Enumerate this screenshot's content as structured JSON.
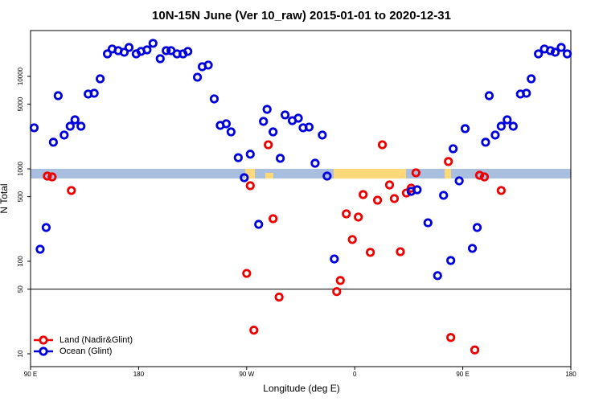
{
  "chart_data": {
    "type": "scatter",
    "title": "10N-15N June (Ver 10_raw)   2015-01-01 to 2020-12-31",
    "xlabel": "Longitude (deg E)",
    "ylabel": "N Total",
    "log_y": true,
    "legend": "lower left",
    "reference_line": 50,
    "xlim": [
      90,
      540
    ],
    "ylim": [
      7.26,
      31300
    ],
    "xticks": [
      {
        "value": 90,
        "label": "90 E"
      },
      180,
      {
        "value": 270,
        "label": "90 W"
      },
      {
        "value": 360,
        "label": "0"
      },
      {
        "value": 450,
        "label": "90 E"
      },
      {
        "value": 540,
        "label": "180"
      }
    ],
    "yticks": [
      10,
      50,
      100,
      500,
      1000,
      5000,
      10000
    ],
    "series": [
      {
        "name": "Land (Nadir&Glint)",
        "color": "#ee0000",
        "x": [
          104,
          108,
          124,
          270,
          273,
          276,
          288,
          292,
          297,
          345,
          348,
          353,
          358,
          363,
          367,
          373,
          379,
          383,
          389,
          393,
          398,
          403,
          407,
          411,
          438,
          440,
          460,
          464,
          468,
          482
        ],
        "values": [
          835,
          818,
          583,
          74,
          657,
          18,
          1820,
          289,
          41,
          47,
          62,
          326,
          172,
          301,
          527,
          125,
          458,
          1820,
          670,
          477,
          127,
          548,
          618,
          906,
          1200,
          15,
          11,
          852,
          818,
          583
        ]
      },
      {
        "name": "Ocean (Glint)",
        "color": "#0000dd",
        "x": [
          93,
          98,
          103,
          109,
          113,
          118,
          123,
          127,
          132,
          138,
          143,
          148,
          154,
          158,
          163,
          168,
          172,
          178,
          182,
          187,
          192,
          198,
          203,
          207,
          212,
          217,
          221,
          229,
          233,
          238,
          243,
          248,
          253,
          257,
          263,
          268,
          273,
          280,
          284,
          287,
          292,
          298,
          302,
          308,
          313,
          317,
          322,
          327,
          333,
          337,
          343,
          407,
          412,
          421,
          429,
          434,
          440,
          442,
          447,
          452,
          458,
          462,
          469,
          472,
          477,
          482,
          487,
          492,
          498,
          503,
          507,
          513,
          518,
          523,
          527,
          532,
          537
        ],
        "values": [
          2780,
          135,
          232,
          1940,
          6180,
          2320,
          2890,
          3390,
          2890,
          6440,
          6570,
          9410,
          17510,
          19770,
          18980,
          18240,
          20560,
          17510,
          18620,
          19360,
          22750,
          15530,
          18980,
          18980,
          17510,
          17510,
          18620,
          9790,
          12720,
          13240,
          5710,
          2950,
          3070,
          2510,
          1320,
          802,
          1440,
          251,
          3260,
          4400,
          2510,
          1300,
          3830,
          3320,
          3530,
          2780,
          2830,
          1150,
          2320,
          835,
          106,
          571,
          594,
          261,
          70,
          517,
          102,
          1650,
          741,
          2720,
          138,
          232,
          1940,
          6180,
          2320,
          2890,
          3390,
          2890,
          6440,
          6570,
          9410,
          17510,
          19770,
          18980,
          18240,
          20560,
          17510
        ]
      }
    ]
  }
}
